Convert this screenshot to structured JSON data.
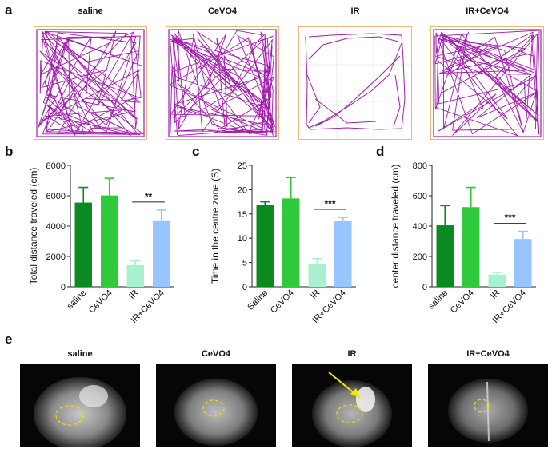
{
  "panel_labels": {
    "a": "a",
    "b": "b",
    "c": "c",
    "d": "d",
    "e": "e"
  },
  "track_titles": [
    "saline",
    "CeVO4",
    "IR",
    "IR+CeVO4"
  ],
  "mri_titles": [
    "saline",
    "CeVO4",
    "IR",
    "IR+CeVO4"
  ],
  "colors": {
    "track": "#a21caf",
    "arena_border": "#f0b878",
    "saline": "#0b8a1f",
    "cevo4": "#2fca3b",
    "ir": "#a8f0d0",
    "ir_cevo4": "#98c4ff"
  },
  "chart_data": [
    {
      "type": "bar",
      "ylabel": "Total distance traveled (cm)",
      "categories": [
        "saline",
        "CeVO4",
        "IR",
        "IR+CeVO4"
      ],
      "values": [
        5550,
        6020,
        1430,
        4380
      ],
      "errors": [
        1000,
        1130,
        270,
        680
      ],
      "ylim": [
        0,
        8000
      ],
      "yticks": [
        0,
        2000,
        4000,
        6000,
        8000
      ],
      "significance": {
        "from": 2,
        "to": 3,
        "label": "**"
      }
    },
    {
      "type": "bar",
      "ylabel": "Time in the centre zone (S)",
      "categories": [
        "Saline",
        "CeVO4",
        "IR",
        "IR+CeVO4"
      ],
      "values": [
        16.9,
        18.2,
        4.6,
        13.6
      ],
      "errors": [
        0.6,
        4.3,
        1.2,
        0.7
      ],
      "ylim": [
        0,
        25
      ],
      "yticks": [
        0,
        5,
        10,
        15,
        20,
        25
      ],
      "significance": {
        "from": 2,
        "to": 3,
        "label": "***"
      }
    },
    {
      "type": "bar",
      "ylabel": "center distance traveled (cm)",
      "categories": [
        "saline",
        "CeVO4",
        "IR",
        "IR+CeVO4"
      ],
      "values": [
        405,
        525,
        80,
        315
      ],
      "errors": [
        130,
        130,
        15,
        50
      ],
      "ylim": [
        0,
        800
      ],
      "yticks": [
        0,
        200,
        400,
        600,
        800
      ],
      "significance": {
        "from": 2,
        "to": 3,
        "label": "***"
      }
    }
  ]
}
